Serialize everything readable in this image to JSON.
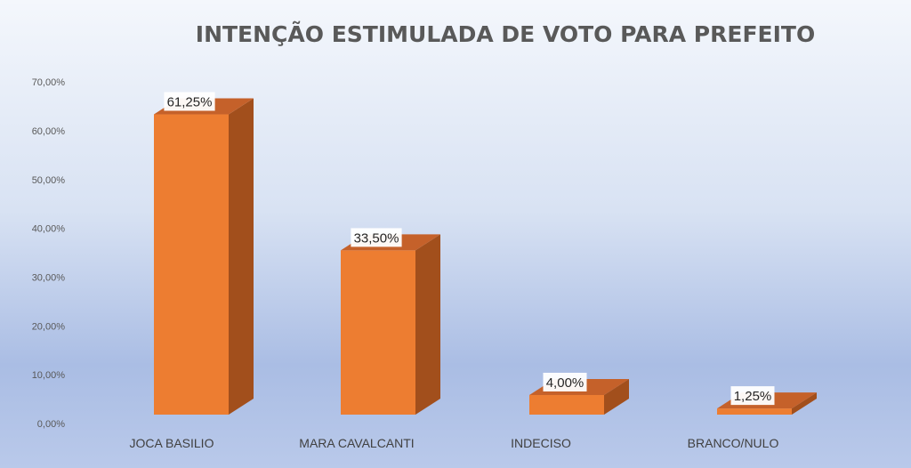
{
  "chart_data": {
    "type": "bar",
    "title": "INTENÇÃO ESTIMULADA DE VOTO PARA PREFEITO",
    "categories": [
      "JOCA BASILIO",
      "MARA CAVALCANTI",
      "INDECISO",
      "BRANCO/NULO"
    ],
    "values": [
      61.25,
      33.5,
      4.0,
      1.25
    ],
    "data_labels": [
      "61,25%",
      "33,50%",
      "4,00%",
      "1,25%"
    ],
    "ylim": [
      0,
      70
    ],
    "y_ticks": [
      "0,00%",
      "10,00%",
      "20,00%",
      "30,00%",
      "40,00%",
      "50,00%",
      "60,00%",
      "70,00%"
    ],
    "xlabel": "",
    "ylabel": "",
    "grid": false,
    "legend": "none",
    "style": "3d-column",
    "colors": {
      "bar_front": "#ed7d31",
      "bar_side": "#a24f1c",
      "bar_top": "#c5612a",
      "label_bg": "#ffffff"
    }
  }
}
